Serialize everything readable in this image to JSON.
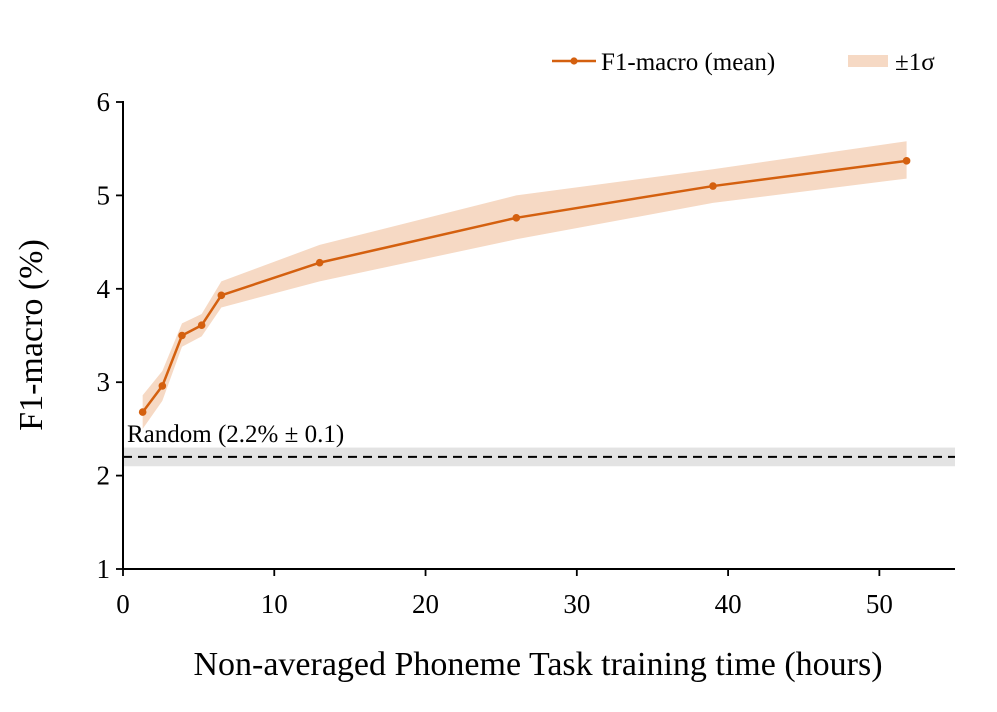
{
  "chart_data": {
    "type": "line",
    "title": "",
    "xlabel": "Non-averaged Phoneme Task training time (hours)",
    "ylabel": "F1-macro (%)",
    "xlim": [
      0,
      55
    ],
    "ylim": [
      1,
      6
    ],
    "xticks": [
      0,
      10,
      20,
      30,
      40,
      50
    ],
    "yticks": [
      1,
      2,
      3,
      4,
      5,
      6
    ],
    "grid": false,
    "legend_position": "top-right",
    "series": [
      {
        "name": "F1-macro (mean)",
        "color": "#d4600f",
        "x": [
          1.3,
          2.6,
          3.9,
          5.2,
          6.5,
          13,
          26,
          39,
          51.8
        ],
        "y": [
          2.68,
          2.96,
          3.5,
          3.61,
          3.93,
          4.28,
          4.76,
          5.1,
          5.37
        ],
        "band_name": "±1σ",
        "band_color": "#f6d9c4",
        "lower": [
          2.5,
          2.8,
          3.38,
          3.49,
          3.8,
          4.08,
          4.53,
          4.92,
          5.18
        ],
        "upper": [
          2.86,
          3.12,
          3.63,
          3.73,
          4.08,
          4.47,
          5.0,
          5.28,
          5.58
        ]
      }
    ],
    "baseline": {
      "label": "Random (2.2% ± 0.1)",
      "value": 2.2,
      "lower": 2.1,
      "upper": 2.3,
      "color": "#000000",
      "band_color": "#e3e3e3"
    }
  }
}
